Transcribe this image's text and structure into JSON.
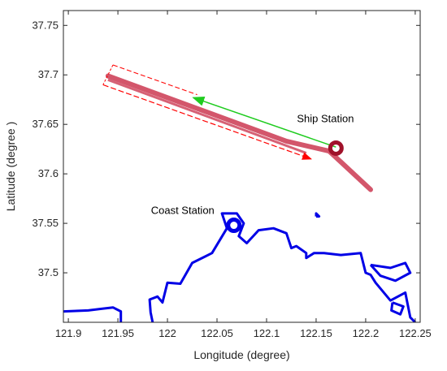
{
  "chart_data": {
    "type": "line",
    "title": "",
    "xlabel": "Longitude (degree)",
    "ylabel": "Latitude (degree )",
    "xlim": [
      121.895,
      122.255
    ],
    "ylim": [
      37.45,
      37.765
    ],
    "x_ticks": [
      121.9,
      121.95,
      122,
      122.05,
      122.1,
      122.15,
      122.2,
      122.25
    ],
    "x_tick_labels": [
      "121.9",
      "121.95",
      "122",
      "122.05",
      "122.1",
      "122.15",
      "122.2",
      "122.25"
    ],
    "y_ticks": [
      37.5,
      37.55,
      37.6,
      37.65,
      37.7,
      37.75
    ],
    "y_tick_labels": [
      "37.5",
      "37.55",
      "37.6",
      "37.65",
      "37.7",
      "37.75"
    ],
    "grid": false,
    "colors": {
      "coastline": "#0000e6",
      "track": "#c41e3a",
      "arrow_green": "#1fcc1f",
      "arrow_red": "#ff0000",
      "axes": "#262626"
    },
    "coast_station": {
      "label": "Coast Station",
      "lon": 122.067,
      "lat": 37.548
    },
    "ship_station": {
      "label": "Ship Station",
      "lon": 122.17,
      "lat": 37.626
    },
    "ship_track": [
      [
        121.94,
        37.699
      ],
      [
        122.12,
        37.633
      ],
      [
        122.163,
        37.623
      ],
      [
        122.175,
        37.612
      ],
      [
        122.205,
        37.584
      ]
    ],
    "ship_track_secondary": [
      [
        121.94,
        37.695
      ],
      [
        122.14,
        37.621
      ]
    ],
    "direction_arrow": {
      "from": [
        122.17,
        37.627
      ],
      "to": [
        122.026,
        37.677
      ]
    },
    "sector_box": [
      [
        121.945,
        37.71
      ],
      [
        122.03,
        37.68
      ]
    ],
    "sector_box_lower": [
      [
        121.935,
        37.69
      ],
      [
        122.145,
        37.615
      ]
    ],
    "coastline_segments": [
      [
        [
          121.895,
          37.461
        ],
        [
          121.92,
          37.462
        ],
        [
          121.945,
          37.465
        ],
        [
          121.953,
          37.461
        ],
        [
          121.953,
          37.45
        ]
      ],
      [
        [
          121.985,
          37.45
        ],
        [
          121.983,
          37.46
        ],
        [
          121.982,
          37.473
        ],
        [
          121.99,
          37.476
        ],
        [
          121.995,
          37.47
        ],
        [
          122.0,
          37.49
        ],
        [
          122.013,
          37.489
        ],
        [
          122.025,
          37.51
        ],
        [
          122.045,
          37.52
        ],
        [
          122.06,
          37.545
        ],
        [
          122.055,
          37.56
        ],
        [
          122.07,
          37.56
        ],
        [
          122.077,
          37.55
        ],
        [
          122.072,
          37.537
        ],
        [
          122.08,
          37.53
        ],
        [
          122.092,
          37.543
        ],
        [
          122.107,
          37.545
        ],
        [
          122.12,
          37.54
        ],
        [
          122.125,
          37.525
        ],
        [
          122.13,
          37.527
        ],
        [
          122.14,
          37.52
        ],
        [
          122.14,
          37.515
        ],
        [
          122.148,
          37.52
        ],
        [
          122.158,
          37.52
        ],
        [
          122.175,
          37.518
        ],
        [
          122.195,
          37.52
        ],
        [
          122.2,
          37.5
        ],
        [
          122.205,
          37.498
        ],
        [
          122.21,
          37.49
        ],
        [
          122.225,
          37.472
        ],
        [
          122.24,
          37.48
        ],
        [
          122.245,
          37.455
        ],
        [
          122.25,
          37.45
        ]
      ],
      [
        [
          122.205,
          37.508
        ],
        [
          122.225,
          37.505
        ],
        [
          122.24,
          37.51
        ],
        [
          122.245,
          37.5
        ],
        [
          122.23,
          37.492
        ],
        [
          122.215,
          37.497
        ],
        [
          122.205,
          37.508
        ]
      ],
      [
        [
          122.227,
          37.47
        ],
        [
          122.238,
          37.466
        ],
        [
          122.235,
          37.458
        ],
        [
          122.226,
          37.462
        ],
        [
          122.227,
          37.47
        ]
      ],
      [
        [
          122.15,
          37.557
        ],
        [
          122.15,
          37.56
        ],
        [
          122.153,
          37.557
        ],
        [
          122.15,
          37.557
        ]
      ]
    ]
  }
}
